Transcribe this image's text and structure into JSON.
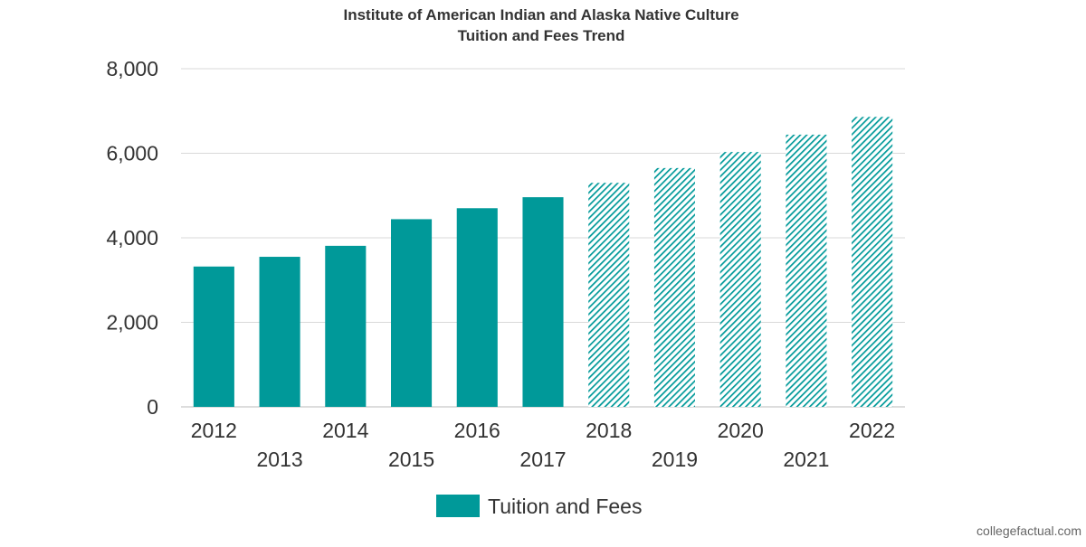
{
  "chart_data": {
    "type": "bar",
    "title": "Institute of American Indian and Alaska Native Culture",
    "subtitle": "Tuition and Fees Trend",
    "categories": [
      "2012",
      "2013",
      "2014",
      "2015",
      "2016",
      "2017",
      "2018",
      "2019",
      "2020",
      "2021",
      "2022"
    ],
    "series": [
      {
        "name": "Tuition and Fees",
        "values": [
          3320,
          3550,
          3810,
          4440,
          4700,
          4960,
          5300,
          5650,
          6030,
          6440,
          6860
        ],
        "projected_from_index": 6
      }
    ],
    "xlabel": "",
    "ylabel": "",
    "ylim": [
      0,
      8000
    ],
    "yticks": [
      0,
      2000,
      4000,
      6000,
      8000
    ],
    "ytick_labels": [
      "0",
      "2,000",
      "4,000",
      "6,000",
      "8,000"
    ],
    "grid": true,
    "legend_position": "bottom",
    "colors": {
      "bar": "#009999",
      "grid": "#d9d9d9",
      "text": "#333333"
    }
  },
  "watermark": "collegefactual.com"
}
